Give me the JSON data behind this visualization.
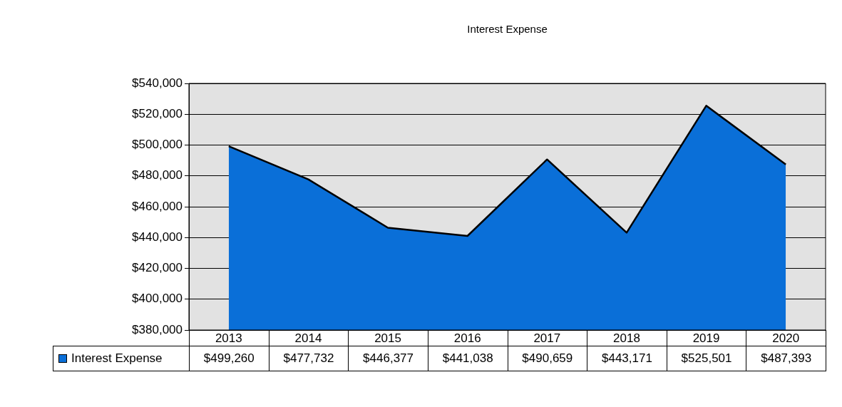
{
  "chart_data": {
    "type": "area",
    "title": "Interest Expense",
    "categories": [
      "2013",
      "2014",
      "2015",
      "2016",
      "2017",
      "2018",
      "2019",
      "2020"
    ],
    "series": [
      {
        "name": "Interest Expense",
        "color": "#0a6fd8",
        "values": [
          499260,
          477732,
          446377,
          441038,
          490659,
          443171,
          525501,
          487393
        ],
        "value_labels": [
          "$499,260",
          "$477,732",
          "$446,377",
          "$441,038",
          "$490,659",
          "$443,171",
          "$525,501",
          "$487,393"
        ]
      }
    ],
    "ylim": [
      380000,
      540000
    ],
    "yticks": [
      {
        "value": 380000,
        "label": "$380,000"
      },
      {
        "value": 400000,
        "label": "$400,000"
      },
      {
        "value": 420000,
        "label": "$420,000"
      },
      {
        "value": 440000,
        "label": "$440,000"
      },
      {
        "value": 460000,
        "label": "$460,000"
      },
      {
        "value": 480000,
        "label": "$480,000"
      },
      {
        "value": 500000,
        "label": "$500,000"
      },
      {
        "value": 520000,
        "label": "$520,000"
      },
      {
        "value": 540000,
        "label": "$540,000"
      }
    ],
    "grid": "y",
    "legend": "bottom left"
  }
}
